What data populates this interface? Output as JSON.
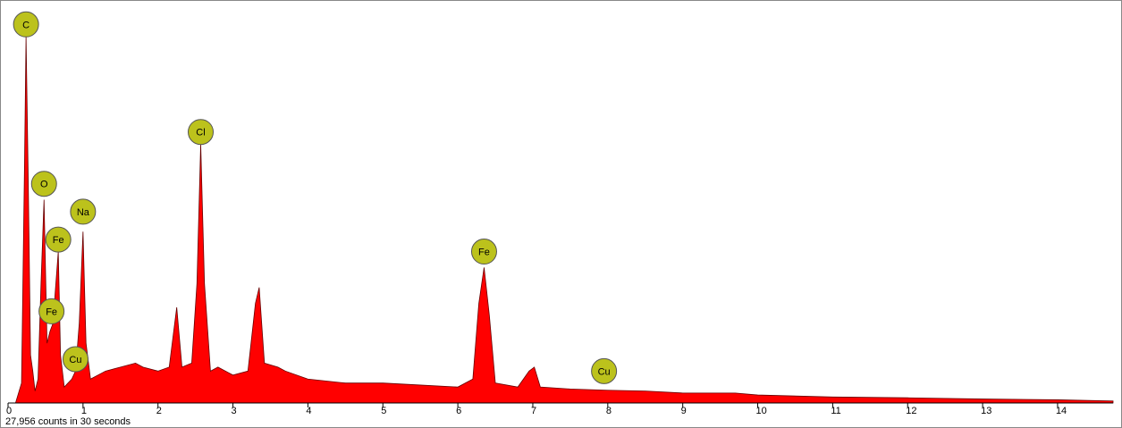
{
  "chart_data": {
    "type": "area",
    "footer": "27,956 counts in 30 seconds",
    "color": "#ff0000",
    "x": [
      0,
      0.1,
      0.18,
      0.22,
      0.24,
      0.27,
      0.3,
      0.33,
      0.36,
      0.4,
      0.44,
      0.48,
      0.52,
      0.56,
      0.6,
      0.63,
      0.67,
      0.7,
      0.75,
      0.8,
      0.85,
      0.9,
      0.95,
      1.0,
      1.04,
      1.1,
      1.3,
      1.5,
      1.7,
      1.8,
      2.0,
      2.15,
      2.25,
      2.32,
      2.45,
      2.52,
      2.57,
      2.62,
      2.7,
      2.8,
      3.0,
      3.2,
      3.3,
      3.35,
      3.42,
      3.6,
      3.7,
      4.0,
      4.5,
      5.0,
      5.5,
      6.0,
      6.2,
      6.28,
      6.35,
      6.42,
      6.5,
      6.8,
      6.95,
      7.02,
      7.1,
      7.5,
      8.0,
      8.5,
      9.0,
      9.7,
      10,
      11,
      12,
      13,
      14,
      14.74
    ],
    "values": [
      0,
      0,
      5,
      60,
      92,
      55,
      12,
      8,
      3,
      6,
      30,
      51,
      15,
      18,
      20,
      28,
      38,
      12,
      4,
      5,
      6,
      8,
      20,
      43,
      15,
      6,
      8,
      9,
      10,
      9,
      8,
      9,
      24,
      9,
      10,
      30,
      65,
      30,
      8,
      9,
      7,
      8,
      25,
      29,
      10,
      9,
      8,
      6,
      5,
      5,
      4.5,
      4,
      6,
      25,
      34,
      22,
      5,
      4,
      8,
      9,
      4,
      3.5,
      3.2,
      3,
      2.5,
      2.5,
      2,
      1.5,
      1.3,
      1,
      0.8,
      0.5
    ],
    "xlim": [
      0,
      14.74
    ],
    "ylim": [
      0,
      100
    ],
    "xticks": [
      0,
      1,
      2,
      3,
      4,
      5,
      6,
      7,
      8,
      9,
      10,
      11,
      12,
      13,
      14
    ],
    "annotations": [
      {
        "label": "C",
        "x": 0.24,
        "y": 95
      },
      {
        "label": "O",
        "x": 0.48,
        "y": 55
      },
      {
        "label": "Fe",
        "x": 0.67,
        "y": 41
      },
      {
        "label": "Na",
        "x": 1.0,
        "y": 48
      },
      {
        "label": "Fe",
        "x": 0.58,
        "y": 23
      },
      {
        "label": "Cu",
        "x": 0.9,
        "y": 11
      },
      {
        "label": "Cl",
        "x": 2.57,
        "y": 68
      },
      {
        "label": "Fe",
        "x": 6.35,
        "y": 38
      },
      {
        "label": "Cu",
        "x": 7.95,
        "y": 8
      }
    ]
  }
}
